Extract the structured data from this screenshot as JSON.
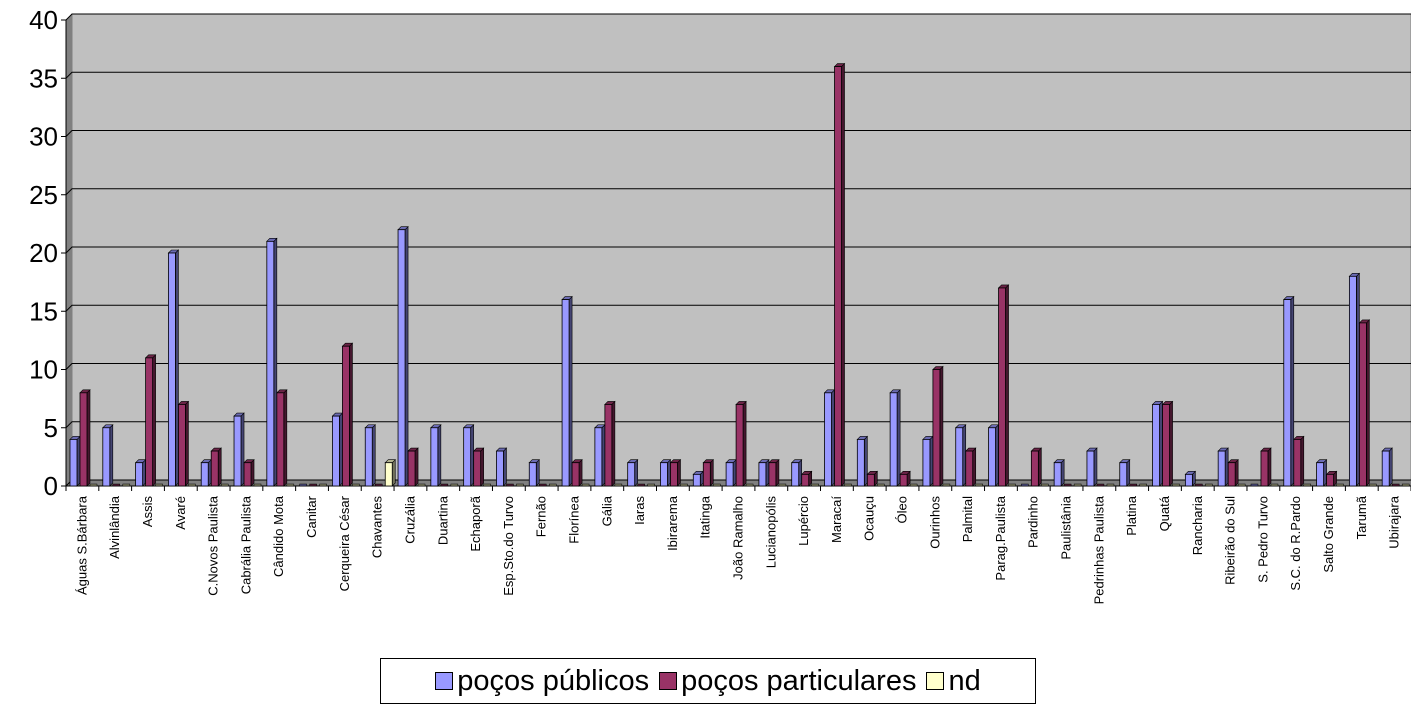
{
  "chart_data": {
    "type": "bar",
    "title": "",
    "xlabel": "",
    "ylabel": "",
    "ylim": [
      0,
      40
    ],
    "yticks": [
      "0",
      "5",
      "10",
      "15",
      "20",
      "25",
      "30",
      "35",
      "40"
    ],
    "grid": true,
    "legend_position": "bottom",
    "categories": [
      "Águas S.Bárbara",
      "Alvinlândia",
      "Assis",
      "Avaré",
      "C.Novos Paulista",
      "Cabrália Paulista",
      "Cândido Mota",
      "Canitar",
      "Cerqueira César",
      "Chavantes",
      "Cruzália",
      "Duartina",
      "Echaporã",
      "Esp.Sto.do Turvo",
      "Fernão",
      "Florínea",
      "Gália",
      "Iaras",
      "Ibirarema",
      "Itatinga",
      "João Ramalho",
      "Lucianopólis",
      "Lupércio",
      "Maracaí",
      "Ocauçu",
      "Óleo",
      "Ourinhos",
      "Palmital",
      "Parag.Paulista",
      "Pardinho",
      "Paulistânia",
      "Pedrinhas Paulista",
      "Platina",
      "Quatá",
      "Rancharia",
      "Ribeirão do Sul",
      "S. Pedro Turvo",
      "S.C. do R.Pardo",
      "Salto Grande",
      "Tarumã",
      "Ubirajara"
    ],
    "series": [
      {
        "name": "poços públicos",
        "color": "#9999FF",
        "values": [
          4,
          5,
          2,
          20,
          2,
          6,
          21,
          0,
          6,
          5,
          22,
          5,
          5,
          3,
          2,
          16,
          5,
          2,
          2,
          1,
          2,
          2,
          2,
          8,
          4,
          8,
          4,
          5,
          5,
          0,
          2,
          3,
          2,
          7,
          1,
          3,
          0,
          16,
          2,
          18,
          3
        ]
      },
      {
        "name": "poços particulares",
        "color": "#993366",
        "values": [
          8,
          0,
          11,
          7,
          3,
          2,
          8,
          0,
          12,
          0,
          3,
          0,
          3,
          0,
          0,
          2,
          7,
          0,
          2,
          2,
          7,
          2,
          1,
          36,
          1,
          1,
          10,
          3,
          17,
          3,
          0,
          0,
          0,
          7,
          0,
          2,
          3,
          4,
          1,
          14,
          0
        ]
      },
      {
        "name": "nd",
        "color": "#FFFFCC",
        "values": [
          0,
          0,
          0,
          0,
          0,
          0,
          0,
          0,
          0,
          2,
          0,
          0,
          0,
          0,
          0,
          0,
          0,
          0,
          0,
          0,
          0,
          0,
          0,
          0,
          0,
          0,
          0,
          0,
          0,
          0,
          0,
          0,
          0,
          0,
          0,
          0,
          0,
          0,
          0,
          0,
          0
        ]
      }
    ],
    "plot_background": "#C0C0C0"
  }
}
